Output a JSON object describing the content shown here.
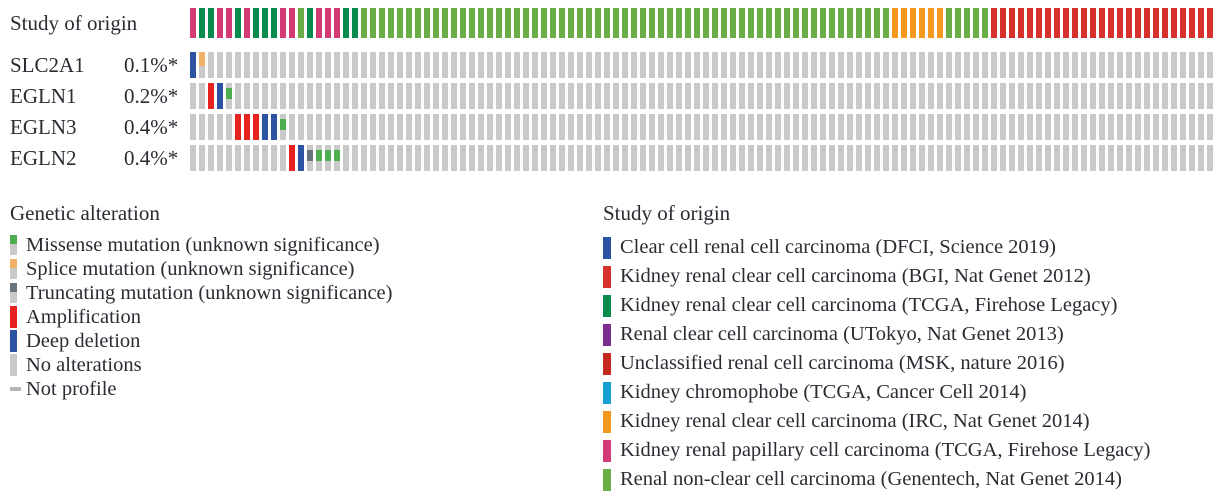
{
  "figure": {
    "background": "#ffffff"
  },
  "chart_data": {
    "type": "heatmap",
    "subtype": "oncoprint",
    "n_samples": 114,
    "study_track": {
      "label": "Study of origin",
      "segments": [
        [
          "kirp_tcga",
          1
        ],
        [
          "kirc_tcga",
          2
        ],
        [
          "kirp_tcga",
          2
        ],
        [
          "kirc_tcga",
          1
        ],
        [
          "kirp_tcga",
          1
        ],
        [
          "kirc_tcga",
          3
        ],
        [
          "kirp_tcga",
          2
        ],
        [
          "genentech",
          1
        ],
        [
          "kirc_tcga",
          1
        ],
        [
          "kirp_tcga",
          3
        ],
        [
          "kirc_tcga",
          2
        ],
        [
          "genentech",
          59
        ],
        [
          "irc",
          6
        ],
        [
          "genentech",
          5
        ],
        [
          "bgi",
          25
        ]
      ]
    },
    "genes": [
      {
        "name": "SLC2A1",
        "pct": "0.1%*",
        "alterations": [
          {
            "i": 0,
            "t": "deep_deletion"
          },
          {
            "i": 1,
            "t": "splice"
          }
        ]
      },
      {
        "name": "EGLN1",
        "pct": "0.2%*",
        "alterations": [
          {
            "i": 2,
            "t": "amplification"
          },
          {
            "i": 3,
            "t": "deep_deletion"
          },
          {
            "i": 4,
            "t": "missense"
          }
        ]
      },
      {
        "name": "EGLN3",
        "pct": "0.4%*",
        "alterations": [
          {
            "i": 5,
            "t": "amplification"
          },
          {
            "i": 6,
            "t": "amplification"
          },
          {
            "i": 7,
            "t": "amplification"
          },
          {
            "i": 8,
            "t": "deep_deletion"
          },
          {
            "i": 9,
            "t": "deep_deletion"
          },
          {
            "i": 10,
            "t": "missense"
          }
        ]
      },
      {
        "name": "EGLN2",
        "pct": "0.4%*",
        "alterations": [
          {
            "i": 11,
            "t": "amplification"
          },
          {
            "i": 12,
            "t": "deep_deletion"
          },
          {
            "i": 13,
            "t": "truncating"
          },
          {
            "i": 14,
            "t": "missense"
          },
          {
            "i": 15,
            "t": "missense"
          },
          {
            "i": 16,
            "t": "missense"
          }
        ]
      }
    ],
    "no_alteration_color": "#c9c9c9"
  },
  "legends": {
    "alteration": {
      "title": "Genetic alteration",
      "items": [
        {
          "id": "missense",
          "label": "Missense mutation (unknown significance)",
          "style": "two_tone",
          "color": "#4cae4f"
        },
        {
          "id": "splice",
          "label": "Splice mutation (unknown significance)",
          "style": "two_tone",
          "color": "#f1b267"
        },
        {
          "id": "truncating",
          "label": "Truncating mutation (unknown significance)",
          "style": "two_tone",
          "color": "#67737d"
        },
        {
          "id": "amplification",
          "label": "Amplification",
          "style": "full",
          "color": "#e6231e"
        },
        {
          "id": "deep_deletion",
          "label": "Deep deletion",
          "style": "full",
          "color": "#2d53a3"
        },
        {
          "id": "no_alterations",
          "label": "No alterations",
          "style": "full",
          "color": "#c9c9c9"
        },
        {
          "id": "not_profile",
          "label": "Not profile",
          "style": "dash",
          "color": "#b6b6b6"
        }
      ]
    },
    "study": {
      "title": "Study of origin",
      "items": [
        {
          "id": "dfci",
          "label": "Clear cell renal cell carcinoma (DFCI, Science 2019)",
          "color": "#2d53a3"
        },
        {
          "id": "bgi",
          "label": "Kidney renal clear cell carcinoma (BGI, Nat Genet 2012)",
          "color": "#d5312a"
        },
        {
          "id": "kirc_tcga",
          "label": "Kidney renal clear cell carcinoma (TCGA, Firehose Legacy)",
          "color": "#0a8a4d"
        },
        {
          "id": "utokyo",
          "label": "Renal clear cell carcinoma (UTokyo, Nat Genet 2013)",
          "color": "#7c2d8e"
        },
        {
          "id": "msk",
          "label": "Unclassified renal cell carcinoma (MSK, nature 2016)",
          "color": "#c5281f"
        },
        {
          "id": "chromophobe",
          "label": "Kidney chromophobe (TCGA, Cancer Cell 2014)",
          "color": "#15a0d5"
        },
        {
          "id": "irc",
          "label": "Kidney renal clear cell carcinoma (IRC, Nat Genet 2014)",
          "color": "#f5981f"
        },
        {
          "id": "kirp_tcga",
          "label": "Kidney renal papillary cell carcinoma (TCGA, Firehose Legacy)",
          "color": "#d43a76"
        },
        {
          "id": "genentech",
          "label": "Renal non-clear cell carcinoma (Genentech, Nat Genet 2014)",
          "color": "#6aad47"
        }
      ]
    }
  }
}
